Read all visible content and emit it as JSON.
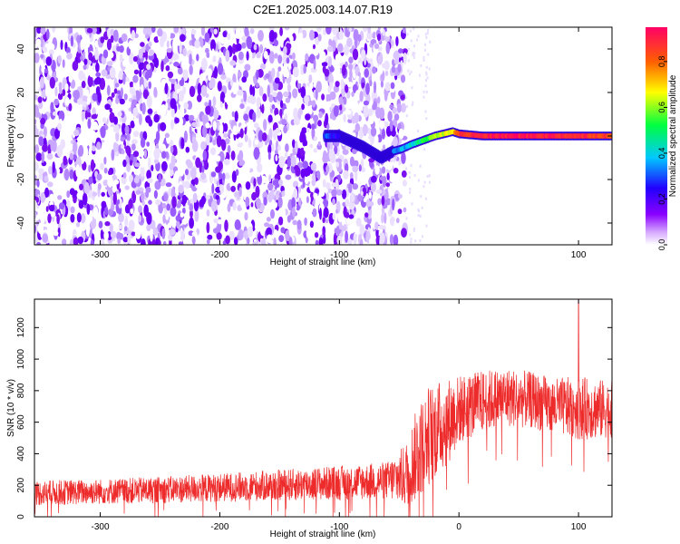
{
  "figure": {
    "title": "C2E1.2025.003.14.07.R19"
  },
  "colors": {
    "snr_line": "#ee2b2b",
    "scatter_base": "#7b10f0",
    "axes": "#000000"
  },
  "colormap": {
    "stops": [
      "#ffffff",
      "#8a00ff",
      "#2200ff",
      "#00c8ff",
      "#00ff40",
      "#ffff00",
      "#ff6000",
      "#ff0066"
    ],
    "range": [
      0.0,
      0.95
    ]
  },
  "chart_data": [
    {
      "type": "heatmap",
      "title": "C2E1.2025.003.14.07.R19",
      "xlabel": "Height of straight line (km)",
      "ylabel": "Frequency (Hz)",
      "colorbar_label": "Normalized spectral amplitude",
      "xlim": [
        -355,
        128
      ],
      "ylim": [
        -50,
        50
      ],
      "clim": [
        0.0,
        0.95
      ],
      "x_ticks": [
        -300,
        -200,
        -100,
        0,
        100
      ],
      "y_ticks": [
        -40,
        -20,
        0,
        20,
        40
      ],
      "colorbar_ticks": [
        0.0,
        0.2,
        0.4,
        0.6,
        0.8
      ],
      "noise_region": {
        "x_range": [
          -355,
          -45
        ],
        "y_range": [
          -50,
          50
        ],
        "amplitude": 0.2
      },
      "signal_track": [
        {
          "x": -110,
          "y": 0,
          "amplitude": 0.3
        },
        {
          "x": -100,
          "y": 0,
          "amplitude": 0.2
        },
        {
          "x": -80,
          "y": -5,
          "amplitude": 0.2
        },
        {
          "x": -65,
          "y": -10,
          "amplitude": 0.15
        },
        {
          "x": -55,
          "y": -7,
          "amplitude": 0.3
        },
        {
          "x": -48,
          "y": -6,
          "amplitude": 0.35
        },
        {
          "x": -40,
          "y": -4,
          "amplitude": 0.4
        },
        {
          "x": -30,
          "y": -2,
          "amplitude": 0.5
        },
        {
          "x": -20,
          "y": 0,
          "amplitude": 0.6
        },
        {
          "x": -5,
          "y": 2,
          "amplitude": 0.7
        },
        {
          "x": 0,
          "y": 1,
          "amplitude": 0.85
        },
        {
          "x": 20,
          "y": 0,
          "amplitude": 0.9
        },
        {
          "x": 50,
          "y": 0,
          "amplitude": 0.92
        },
        {
          "x": 80,
          "y": 0,
          "amplitude": 0.9
        },
        {
          "x": 100,
          "y": 0,
          "amplitude": 0.88
        },
        {
          "x": 128,
          "y": 0,
          "amplitude": 0.85
        }
      ]
    },
    {
      "type": "line",
      "xlabel": "Height of straight line (km)",
      "ylabel": "SNR (10 * v/v)",
      "xlim": [
        -355,
        128
      ],
      "ylim": [
        0,
        1380
      ],
      "x_ticks": [
        -300,
        -200,
        -100,
        0,
        100
      ],
      "y_ticks": [
        0,
        200,
        400,
        600,
        800,
        1000,
        1200
      ],
      "series": [
        {
          "x": [
            -355,
            -300,
            -250,
            -200,
            -150,
            -100,
            -60,
            -45,
            -35,
            -25,
            -10,
            0,
            20,
            40,
            60,
            80,
            100,
            120,
            128
          ],
          "y_mean": [
            150,
            160,
            170,
            185,
            200,
            215,
            230,
            260,
            400,
            520,
            600,
            680,
            730,
            760,
            740,
            700,
            690,
            680,
            680
          ],
          "y_spread": [
            80,
            80,
            85,
            90,
            100,
            110,
            120,
            200,
            300,
            320,
            280,
            220,
            200,
            190,
            180,
            180,
            200,
            190,
            180
          ]
        }
      ],
      "peak": {
        "x": 100,
        "y": 1370
      }
    }
  ]
}
